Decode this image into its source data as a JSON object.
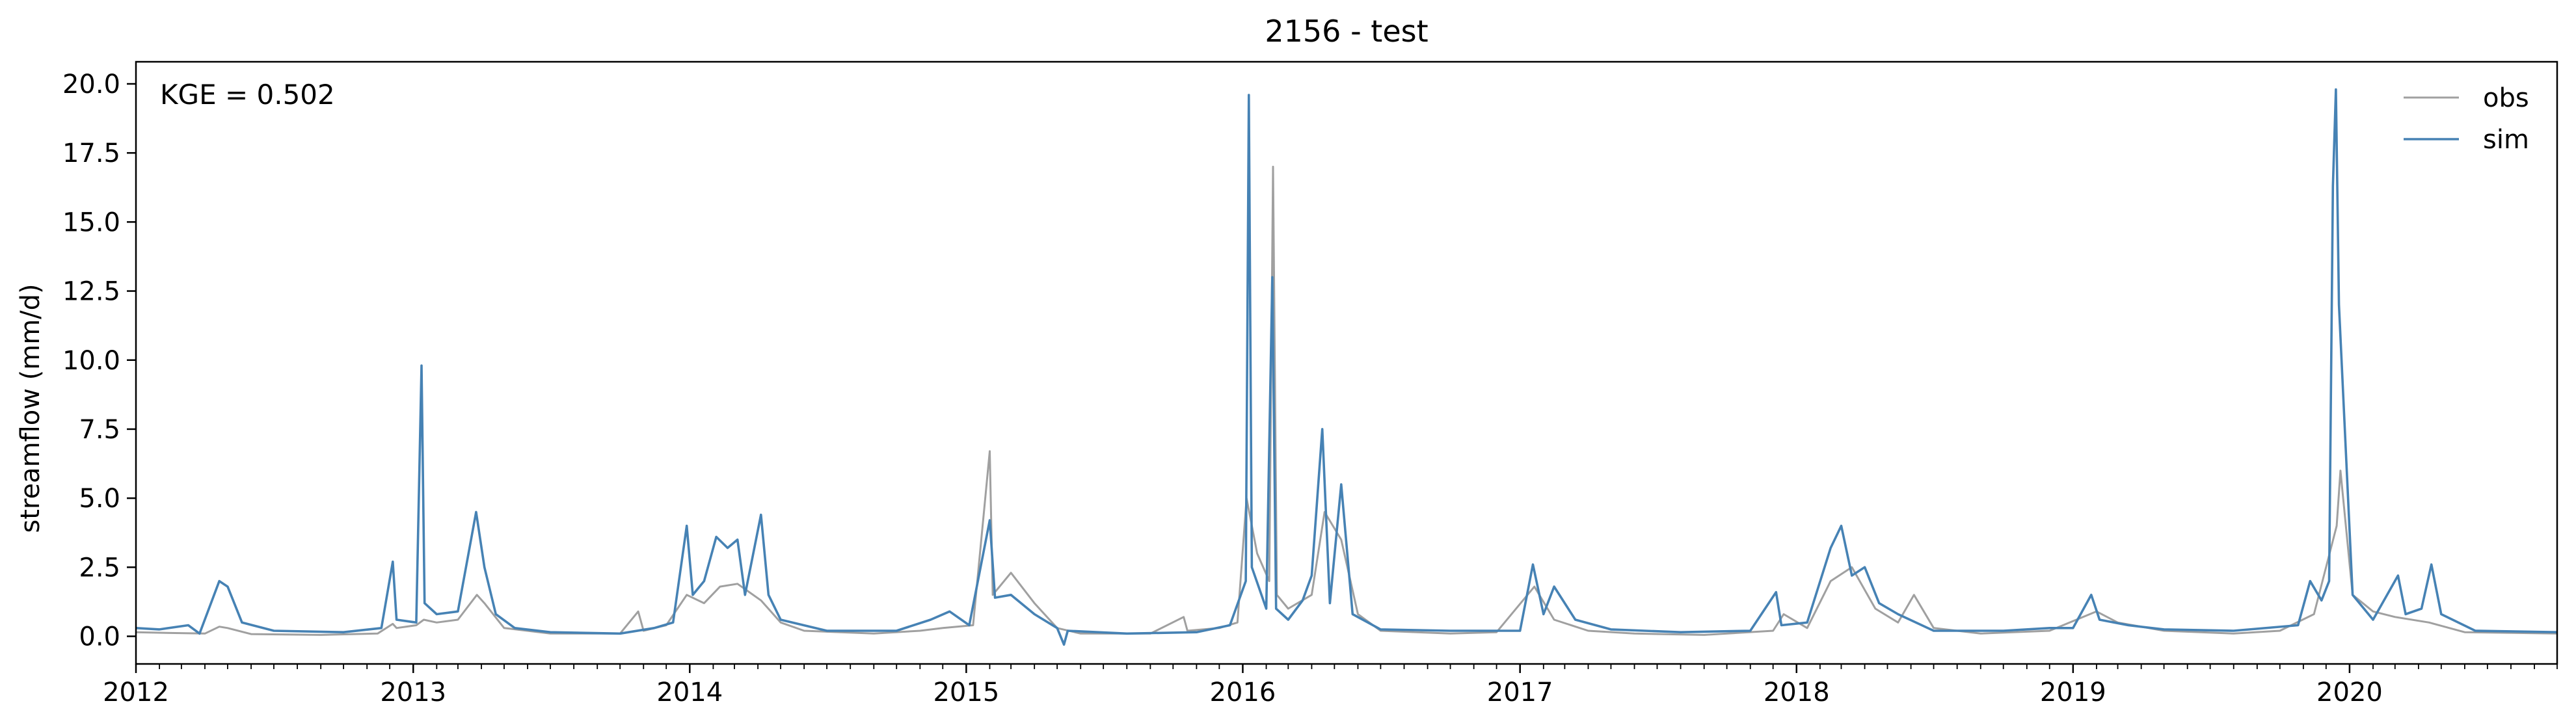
{
  "chart_data": {
    "type": "line",
    "title": "2156 - test",
    "xlabel": "",
    "ylabel": "streamflow (mm/d)",
    "annotation": "KGE = 0.502",
    "xlim": [
      "2012-01-01",
      "2020-10-01"
    ],
    "ylim": [
      -1.0,
      20.8
    ],
    "xticks": [
      {
        "date": "2012-01-01",
        "label": "2012"
      },
      {
        "date": "2013-01-01",
        "label": "2013"
      },
      {
        "date": "2014-01-01",
        "label": "2014"
      },
      {
        "date": "2015-01-01",
        "label": "2015"
      },
      {
        "date": "2016-01-01",
        "label": "2016"
      },
      {
        "date": "2017-01-01",
        "label": "2017"
      },
      {
        "date": "2018-01-01",
        "label": "2018"
      },
      {
        "date": "2019-01-01",
        "label": "2019"
      },
      {
        "date": "2020-01-01",
        "label": "2020"
      }
    ],
    "yticks": [
      {
        "value": 0.0,
        "label": "0.0"
      },
      {
        "value": 2.5,
        "label": "2.5"
      },
      {
        "value": 5.0,
        "label": "5.0"
      },
      {
        "value": 7.5,
        "label": "7.5"
      },
      {
        "value": 10.0,
        "label": "10.0"
      },
      {
        "value": 12.5,
        "label": "12.5"
      },
      {
        "value": 15.0,
        "label": "15.0"
      },
      {
        "value": 17.5,
        "label": "17.5"
      },
      {
        "value": 20.0,
        "label": "20.0"
      }
    ],
    "grid": false,
    "legend_position": "top-right",
    "series": [
      {
        "name": "obs",
        "color": "#a0a0a0",
        "points": [
          [
            "2012-01-01",
            0.15
          ],
          [
            "2012-02-15",
            0.12
          ],
          [
            "2012-04-01",
            0.1
          ],
          [
            "2012-04-20",
            0.35
          ],
          [
            "2012-05-01",
            0.3
          ],
          [
            "2012-06-01",
            0.08
          ],
          [
            "2012-09-01",
            0.05
          ],
          [
            "2012-11-15",
            0.1
          ],
          [
            "2012-12-05",
            0.45
          ],
          [
            "2012-12-10",
            0.3
          ],
          [
            "2013-01-05",
            0.4
          ],
          [
            "2013-01-15",
            0.6
          ],
          [
            "2013-02-01",
            0.5
          ],
          [
            "2013-03-01",
            0.6
          ],
          [
            "2013-03-26",
            1.5
          ],
          [
            "2013-04-05",
            1.2
          ],
          [
            "2013-05-01",
            0.3
          ],
          [
            "2013-07-01",
            0.1
          ],
          [
            "2013-10-01",
            0.1
          ],
          [
            "2013-10-25",
            0.9
          ],
          [
            "2013-11-01",
            0.2
          ],
          [
            "2013-12-01",
            0.4
          ],
          [
            "2013-12-28",
            1.5
          ],
          [
            "2014-01-20",
            1.2
          ],
          [
            "2014-02-10",
            1.8
          ],
          [
            "2014-03-05",
            1.9
          ],
          [
            "2014-04-05",
            1.3
          ],
          [
            "2014-05-01",
            0.5
          ],
          [
            "2014-06-01",
            0.2
          ],
          [
            "2014-09-01",
            0.1
          ],
          [
            "2014-11-01",
            0.2
          ],
          [
            "2014-12-01",
            0.3
          ],
          [
            "2015-01-10",
            0.4
          ],
          [
            "2015-02-01",
            6.7
          ],
          [
            "2015-02-05",
            1.5
          ],
          [
            "2015-03-01",
            2.3
          ],
          [
            "2015-04-01",
            1.2
          ],
          [
            "2015-05-01",
            0.3
          ],
          [
            "2015-06-01",
            0.1
          ],
          [
            "2015-09-01",
            0.1
          ],
          [
            "2015-10-15",
            0.7
          ],
          [
            "2015-10-20",
            0.2
          ],
          [
            "2015-12-01",
            0.3
          ],
          [
            "2015-12-25",
            0.5
          ],
          [
            "2016-01-06",
            5.0
          ],
          [
            "2016-01-20",
            3.0
          ],
          [
            "2016-02-05",
            2.0
          ],
          [
            "2016-02-10",
            17.0
          ],
          [
            "2016-02-15",
            1.5
          ],
          [
            "2016-03-01",
            1.0
          ],
          [
            "2016-04-01",
            1.5
          ],
          [
            "2016-04-18",
            4.5
          ],
          [
            "2016-05-10",
            3.5
          ],
          [
            "2016-06-01",
            0.8
          ],
          [
            "2016-07-01",
            0.2
          ],
          [
            "2016-10-01",
            0.1
          ],
          [
            "2016-12-01",
            0.15
          ],
          [
            "2017-01-20",
            1.8
          ],
          [
            "2017-02-15",
            0.6
          ],
          [
            "2017-04-01",
            0.2
          ],
          [
            "2017-06-01",
            0.1
          ],
          [
            "2017-09-01",
            0.05
          ],
          [
            "2017-12-01",
            0.2
          ],
          [
            "2017-12-15",
            0.8
          ],
          [
            "2018-01-15",
            0.3
          ],
          [
            "2018-02-15",
            2.0
          ],
          [
            "2018-03-15",
            2.5
          ],
          [
            "2018-04-15",
            1.0
          ],
          [
            "2018-05-15",
            0.5
          ],
          [
            "2018-06-05",
            1.5
          ],
          [
            "2018-07-01",
            0.3
          ],
          [
            "2018-09-01",
            0.1
          ],
          [
            "2018-12-01",
            0.2
          ],
          [
            "2019-02-01",
            0.9
          ],
          [
            "2019-03-01",
            0.5
          ],
          [
            "2019-05-01",
            0.2
          ],
          [
            "2019-08-01",
            0.1
          ],
          [
            "2019-10-01",
            0.2
          ],
          [
            "2019-11-15",
            0.8
          ],
          [
            "2019-12-15",
            4.0
          ],
          [
            "2019-12-20",
            6.0
          ],
          [
            "2020-01-05",
            1.5
          ],
          [
            "2020-02-01",
            0.9
          ],
          [
            "2020-03-01",
            0.7
          ],
          [
            "2020-04-15",
            0.5
          ],
          [
            "2020-06-01",
            0.15
          ],
          [
            "2020-10-01",
            0.1
          ]
        ]
      },
      {
        "name": "sim",
        "color": "#4682b4",
        "points": [
          [
            "2012-01-01",
            0.3
          ],
          [
            "2012-02-01",
            0.25
          ],
          [
            "2012-03-10",
            0.4
          ],
          [
            "2012-03-25",
            0.1
          ],
          [
            "2012-04-20",
            2.0
          ],
          [
            "2012-05-01",
            1.8
          ],
          [
            "2012-05-20",
            0.5
          ],
          [
            "2012-07-01",
            0.2
          ],
          [
            "2012-10-01",
            0.15
          ],
          [
            "2012-11-20",
            0.3
          ],
          [
            "2012-12-05",
            2.7
          ],
          [
            "2012-12-10",
            0.6
          ],
          [
            "2013-01-05",
            0.5
          ],
          [
            "2013-01-12",
            9.8
          ],
          [
            "2013-01-16",
            1.2
          ],
          [
            "2013-02-01",
            0.8
          ],
          [
            "2013-03-01",
            0.9
          ],
          [
            "2013-03-25",
            4.5
          ],
          [
            "2013-04-05",
            2.5
          ],
          [
            "2013-04-20",
            0.8
          ],
          [
            "2013-05-15",
            0.3
          ],
          [
            "2013-07-01",
            0.15
          ],
          [
            "2013-10-01",
            0.1
          ],
          [
            "2013-11-15",
            0.3
          ],
          [
            "2013-12-10",
            0.5
          ],
          [
            "2013-12-28",
            4.0
          ],
          [
            "2014-01-05",
            1.5
          ],
          [
            "2014-01-20",
            2.0
          ],
          [
            "2014-02-05",
            3.6
          ],
          [
            "2014-02-20",
            3.2
          ],
          [
            "2014-03-05",
            3.5
          ],
          [
            "2014-03-15",
            1.5
          ],
          [
            "2014-04-05",
            4.4
          ],
          [
            "2014-04-15",
            1.5
          ],
          [
            "2014-05-01",
            0.6
          ],
          [
            "2014-07-01",
            0.2
          ],
          [
            "2014-10-01",
            0.2
          ],
          [
            "2014-11-15",
            0.6
          ],
          [
            "2014-12-10",
            0.9
          ],
          [
            "2015-01-05",
            0.4
          ],
          [
            "2015-02-01",
            4.2
          ],
          [
            "2015-02-08",
            1.4
          ],
          [
            "2015-03-01",
            1.5
          ],
          [
            "2015-04-01",
            0.8
          ],
          [
            "2015-05-01",
            0.3
          ],
          [
            "2015-05-10",
            -0.3
          ],
          [
            "2015-05-15",
            0.2
          ],
          [
            "2015-08-01",
            0.1
          ],
          [
            "2015-11-01",
            0.15
          ],
          [
            "2015-12-15",
            0.4
          ],
          [
            "2016-01-05",
            2.0
          ],
          [
            "2016-01-09",
            19.6
          ],
          [
            "2016-01-13",
            2.5
          ],
          [
            "2016-02-01",
            1.0
          ],
          [
            "2016-02-09",
            13.0
          ],
          [
            "2016-02-14",
            1.0
          ],
          [
            "2016-03-01",
            0.6
          ],
          [
            "2016-03-20",
            1.3
          ],
          [
            "2016-04-01",
            2.2
          ],
          [
            "2016-04-15",
            7.5
          ],
          [
            "2016-04-25",
            1.2
          ],
          [
            "2016-05-10",
            5.5
          ],
          [
            "2016-05-25",
            0.8
          ],
          [
            "2016-07-01",
            0.25
          ],
          [
            "2016-10-01",
            0.2
          ],
          [
            "2017-01-01",
            0.2
          ],
          [
            "2017-01-18",
            2.6
          ],
          [
            "2017-02-01",
            0.8
          ],
          [
            "2017-02-15",
            1.8
          ],
          [
            "2017-03-15",
            0.6
          ],
          [
            "2017-05-01",
            0.25
          ],
          [
            "2017-08-01",
            0.15
          ],
          [
            "2017-11-01",
            0.2
          ],
          [
            "2017-12-05",
            1.6
          ],
          [
            "2017-12-12",
            0.4
          ],
          [
            "2018-01-15",
            0.5
          ],
          [
            "2018-02-15",
            3.2
          ],
          [
            "2018-03-01",
            4.0
          ],
          [
            "2018-03-15",
            2.2
          ],
          [
            "2018-04-01",
            2.5
          ],
          [
            "2018-04-20",
            1.2
          ],
          [
            "2018-05-15",
            0.8
          ],
          [
            "2018-07-01",
            0.2
          ],
          [
            "2018-10-01",
            0.2
          ],
          [
            "2018-12-01",
            0.3
          ],
          [
            "2019-01-01",
            0.3
          ],
          [
            "2019-01-25",
            1.5
          ],
          [
            "2019-02-05",
            0.6
          ],
          [
            "2019-03-15",
            0.4
          ],
          [
            "2019-05-01",
            0.25
          ],
          [
            "2019-08-01",
            0.2
          ],
          [
            "2019-10-25",
            0.4
          ],
          [
            "2019-11-10",
            2.0
          ],
          [
            "2019-11-25",
            1.3
          ],
          [
            "2019-12-05",
            2.0
          ],
          [
            "2019-12-10",
            16.3
          ],
          [
            "2019-12-14",
            19.8
          ],
          [
            "2019-12-18",
            12.0
          ],
          [
            "2020-01-05",
            1.5
          ],
          [
            "2020-02-01",
            0.6
          ],
          [
            "2020-03-05",
            2.2
          ],
          [
            "2020-03-15",
            0.8
          ],
          [
            "2020-04-05",
            1.0
          ],
          [
            "2020-04-18",
            2.6
          ],
          [
            "2020-05-01",
            0.8
          ],
          [
            "2020-06-15",
            0.2
          ],
          [
            "2020-10-01",
            0.15
          ]
        ]
      }
    ]
  }
}
